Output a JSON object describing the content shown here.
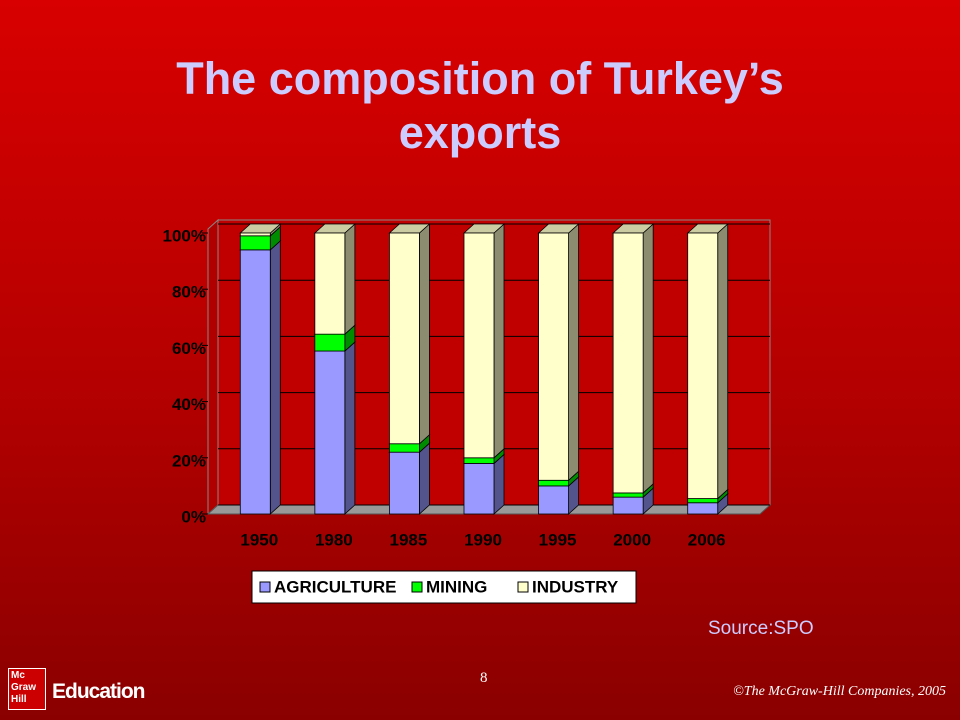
{
  "chart_data": {
    "type": "stacked-bar-3d",
    "title": "The composition of Turkey’s exports",
    "categories": [
      "1950",
      "1980",
      "1985",
      "1990",
      "1995",
      "2000",
      "2006"
    ],
    "series": [
      {
        "name": "AGRICULTURE",
        "color": "#9999ff",
        "values": [
          94,
          58,
          22,
          18,
          10,
          6,
          4
        ]
      },
      {
        "name": "MINING",
        "color": "#00ff00",
        "values": [
          5,
          6,
          3,
          2,
          2,
          1.5,
          1.5
        ]
      },
      {
        "name": "INDUSTRY",
        "color": "#ffffcc",
        "values": [
          1,
          36,
          75,
          80,
          88,
          92.5,
          94.5
        ]
      }
    ],
    "ylim": [
      0,
      100
    ],
    "yticks": [
      {
        "value": 0,
        "label": "0%"
      },
      {
        "value": 20,
        "label": "20%"
      },
      {
        "value": 40,
        "label": "40%"
      },
      {
        "value": 60,
        "label": "60%"
      },
      {
        "value": 80,
        "label": "80%"
      },
      {
        "value": 100,
        "label": "100%"
      }
    ],
    "grid": true,
    "legend": "bottom"
  },
  "source": "Source:SPO",
  "page_number": "8",
  "copyright": "©The McGraw-Hill Companies, 2005",
  "logo": {
    "mark": "Mc Graw Hill",
    "text": "Education"
  }
}
